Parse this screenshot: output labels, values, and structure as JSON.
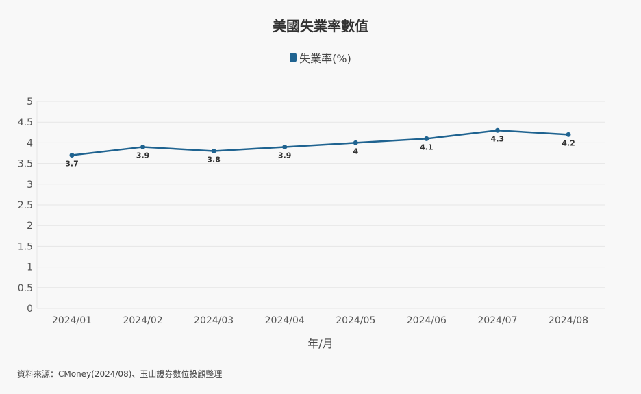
{
  "title": "美國失業率數值",
  "source": "資料來源：CMoney(2024/08)、玉山證券數位投顧整理",
  "colors": {
    "series": "#1f6390",
    "grid": "#e6e6e6",
    "axis_text": "#555555"
  },
  "chart_data": {
    "type": "line",
    "title": "美國失業率數值",
    "xlabel": "年/月",
    "ylabel": "",
    "ylim": [
      0,
      5
    ],
    "yticks": [
      "0",
      "0.5",
      "1",
      "1.5",
      "2",
      "2.5",
      "3",
      "3.5",
      "4",
      "4.5",
      "5"
    ],
    "grid": true,
    "legend_position": "top-center",
    "categories": [
      "2024/01",
      "2024/02",
      "2024/03",
      "2024/04",
      "2024/05",
      "2024/06",
      "2024/07",
      "2024/08"
    ],
    "series": [
      {
        "name": "失業率(%)",
        "values": [
          3.7,
          3.9,
          3.8,
          3.9,
          4,
          4.1,
          4.3,
          4.2
        ],
        "labels": [
          "3.7",
          "3.9",
          "3.8",
          "3.9",
          "4",
          "4.1",
          "4.3",
          "4.2"
        ]
      }
    ]
  }
}
